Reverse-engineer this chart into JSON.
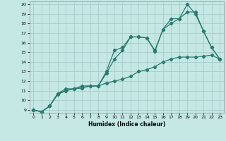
{
  "xlabel": "Humidex (Indice chaleur)",
  "bg_color": "#c5e8e5",
  "grid_color": "#a8cccb",
  "line_color": "#2a7b6f",
  "xlim": [
    -0.5,
    23.5
  ],
  "ylim": [
    8.7,
    20.3
  ],
  "xticks": [
    0,
    1,
    2,
    3,
    4,
    5,
    6,
    7,
    8,
    9,
    10,
    11,
    12,
    13,
    14,
    15,
    16,
    17,
    18,
    19,
    20,
    21,
    22,
    23
  ],
  "yticks": [
    9,
    10,
    11,
    12,
    13,
    14,
    15,
    16,
    17,
    18,
    19,
    20
  ],
  "series1_x": [
    0,
    1,
    2,
    3,
    4,
    5,
    6,
    7,
    8,
    9,
    10,
    11,
    12,
    13,
    14,
    15,
    16,
    17,
    18,
    19,
    20,
    21,
    22,
    23
  ],
  "series1_y": [
    9.0,
    8.8,
    9.4,
    10.6,
    11.0,
    11.2,
    11.3,
    11.5,
    11.5,
    13.0,
    15.2,
    15.5,
    16.6,
    16.6,
    16.5,
    15.2,
    17.4,
    18.0,
    18.5,
    20.0,
    19.0,
    17.2,
    15.5,
    14.3
  ],
  "series2_x": [
    0,
    1,
    2,
    3,
    4,
    5,
    6,
    7,
    8,
    9,
    10,
    11,
    12,
    13,
    14,
    15,
    16,
    17,
    18,
    19,
    20,
    21,
    22,
    23
  ],
  "series2_y": [
    9.0,
    8.8,
    9.4,
    10.7,
    11.0,
    11.2,
    11.5,
    11.5,
    11.5,
    12.8,
    14.3,
    15.2,
    16.6,
    16.6,
    16.5,
    15.1,
    17.4,
    18.5,
    18.5,
    19.2,
    19.2,
    17.2,
    15.5,
    14.3
  ],
  "series3_x": [
    0,
    1,
    2,
    3,
    4,
    5,
    6,
    7,
    8,
    9,
    10,
    11,
    12,
    13,
    14,
    15,
    16,
    17,
    18,
    19,
    20,
    21,
    22,
    23
  ],
  "series3_y": [
    9.0,
    8.8,
    9.4,
    10.7,
    11.2,
    11.2,
    11.3,
    11.5,
    11.5,
    11.8,
    12.0,
    12.2,
    12.5,
    13.0,
    13.2,
    13.5,
    14.0,
    14.3,
    14.5,
    14.5,
    14.5,
    14.6,
    14.7,
    14.3
  ]
}
